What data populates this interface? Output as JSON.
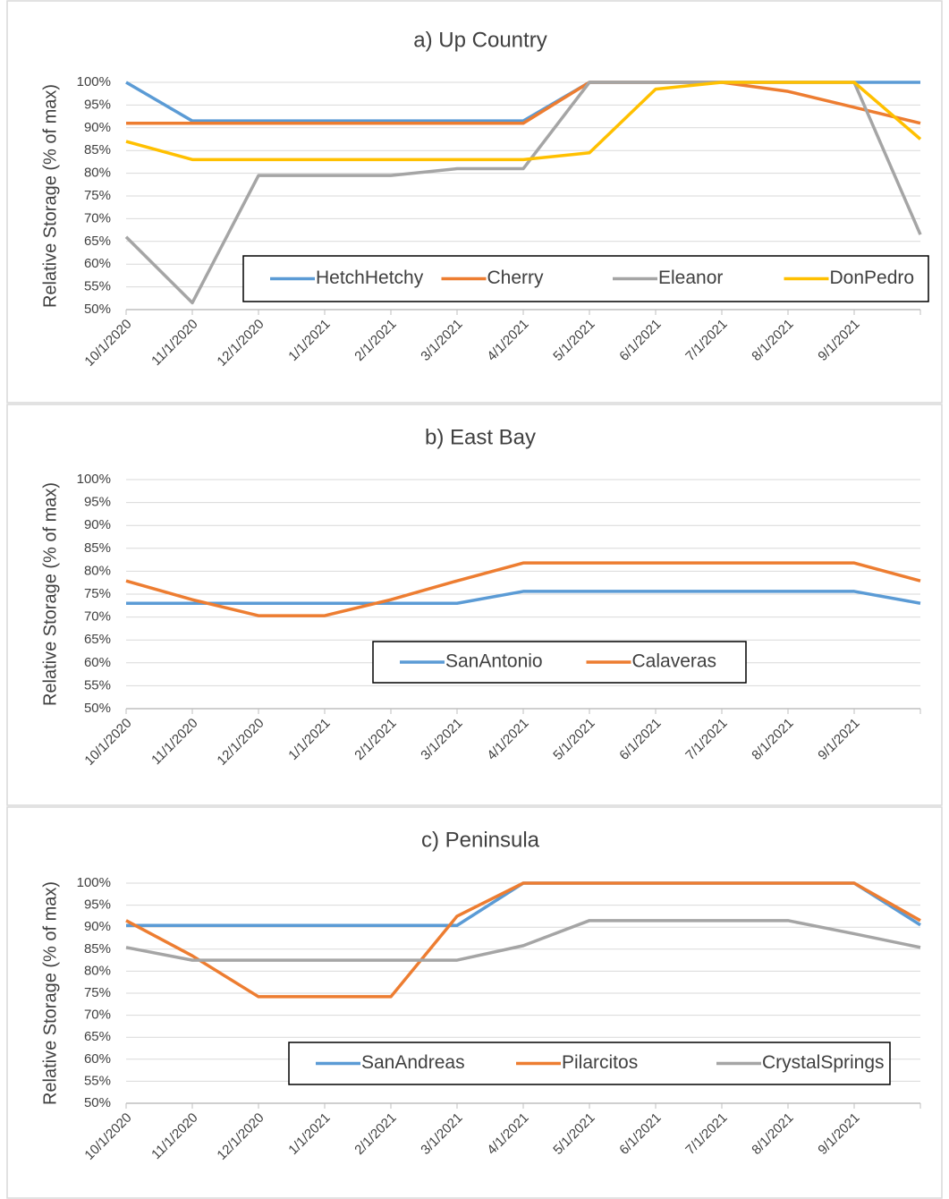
{
  "chart_data": [
    {
      "type": "line",
      "title": "a) Up Country",
      "y_label": "Relative Storage (% of max)",
      "categories": [
        "10/1/2020",
        "11/1/2020",
        "12/1/2020",
        "1/1/2021",
        "2/1/2021",
        "3/1/2021",
        "4/1/2021",
        "5/1/2021",
        "6/1/2021",
        "7/1/2021",
        "8/1/2021",
        "9/1/2021",
        null
      ],
      "series": [
        {
          "name": "HetchHetchy",
          "color": "#5b9bd5",
          "values": [
            100,
            91.5,
            91.5,
            91.5,
            91.5,
            91.5,
            91.5,
            100,
            100,
            100,
            100,
            100,
            100
          ]
        },
        {
          "name": "Cherry",
          "color": "#ed7d31",
          "values": [
            91,
            91,
            91,
            91,
            91,
            91,
            91,
            100,
            100,
            100,
            98,
            94.5,
            91
          ]
        },
        {
          "name": "Eleanor",
          "color": "#a5a5a5",
          "values": [
            66,
            51.5,
            79.5,
            79.5,
            79.5,
            81,
            81,
            100,
            100,
            100,
            100,
            100,
            66.5
          ]
        },
        {
          "name": "DonPedro",
          "color": "#ffc000",
          "values": [
            87,
            83,
            83,
            83,
            83,
            83,
            83,
            84.5,
            98.5,
            100,
            100,
            100,
            87.5
          ]
        }
      ],
      "ylim": [
        50,
        100
      ],
      "yticks": [
        {
          "value": 50,
          "label": "50%"
        },
        {
          "value": 55,
          "label": "55%"
        },
        {
          "value": 60,
          "label": "60%"
        },
        {
          "value": 65,
          "label": "65%"
        },
        {
          "value": 70,
          "label": "70%"
        },
        {
          "value": 75,
          "label": "75%"
        },
        {
          "value": 80,
          "label": "80%"
        },
        {
          "value": 85,
          "label": "85%"
        },
        {
          "value": 90,
          "label": "90%"
        },
        {
          "value": 95,
          "label": "95%"
        },
        {
          "value": 100,
          "label": "100%"
        }
      ],
      "grid": true
    },
    {
      "type": "line",
      "title": "b) East Bay",
      "y_label": "Relative Storage (% of max)",
      "categories": [
        "10/1/2020",
        "11/1/2020",
        "12/1/2020",
        "1/1/2021",
        "2/1/2021",
        "3/1/2021",
        "4/1/2021",
        "5/1/2021",
        "6/1/2021",
        "7/1/2021",
        "8/1/2021",
        "9/1/2021",
        null
      ],
      "series": [
        {
          "name": "SanAntonio",
          "color": "#5b9bd5",
          "values": [
            73,
            73,
            73,
            73,
            73,
            73,
            75.6,
            75.6,
            75.6,
            75.6,
            75.6,
            75.6,
            73
          ]
        },
        {
          "name": "Calaveras",
          "color": "#ed7d31",
          "values": [
            77.9,
            73.8,
            70.3,
            70.3,
            73.8,
            77.9,
            81.8,
            81.8,
            81.8,
            81.8,
            81.8,
            81.8,
            77.9
          ]
        }
      ],
      "ylim": [
        50,
        100
      ],
      "yticks": [
        {
          "value": 50,
          "label": "50%"
        },
        {
          "value": 55,
          "label": "55%"
        },
        {
          "value": 60,
          "label": "60%"
        },
        {
          "value": 65,
          "label": "65%"
        },
        {
          "value": 70,
          "label": "70%"
        },
        {
          "value": 75,
          "label": "75%"
        },
        {
          "value": 80,
          "label": "80%"
        },
        {
          "value": 85,
          "label": "85%"
        },
        {
          "value": 90,
          "label": "90%"
        },
        {
          "value": 95,
          "label": "95%"
        },
        {
          "value": 100,
          "label": "100%"
        }
      ],
      "grid": true
    },
    {
      "type": "line",
      "title": "c) Peninsula",
      "y_label": "Relative Storage (% of max)",
      "categories": [
        "10/1/2020",
        "11/1/2020",
        "12/1/2020",
        "1/1/2021",
        "2/1/2021",
        "3/1/2021",
        "4/1/2021",
        "5/1/2021",
        "6/1/2021",
        "7/1/2021",
        "8/1/2021",
        "9/1/2021",
        null
      ],
      "series": [
        {
          "name": "SanAndreas",
          "color": "#5b9bd5",
          "values": [
            90.4,
            90.4,
            90.4,
            90.4,
            90.4,
            90.4,
            100,
            100,
            100,
            100,
            100,
            100,
            90.5
          ]
        },
        {
          "name": "Pilarcitos",
          "color": "#ed7d31",
          "values": [
            91.5,
            83.5,
            74.2,
            74.2,
            74.2,
            92.5,
            100,
            100,
            100,
            100,
            100,
            100,
            91.5
          ]
        },
        {
          "name": "CrystalSprings",
          "color": "#a5a5a5",
          "values": [
            85.4,
            82.5,
            82.5,
            82.5,
            82.5,
            82.5,
            85.8,
            91.5,
            91.5,
            91.5,
            91.5,
            88.5,
            85.4
          ]
        }
      ],
      "ylim": [
        50,
        100
      ],
      "yticks": [
        {
          "value": 50,
          "label": "50%"
        },
        {
          "value": 55,
          "label": "55%"
        },
        {
          "value": 60,
          "label": "60%"
        },
        {
          "value": 65,
          "label": "65%"
        },
        {
          "value": 70,
          "label": "70%"
        },
        {
          "value": 75,
          "label": "75%"
        },
        {
          "value": 80,
          "label": "80%"
        },
        {
          "value": 85,
          "label": "85%"
        },
        {
          "value": 90,
          "label": "90%"
        },
        {
          "value": 95,
          "label": "95%"
        },
        {
          "value": 100,
          "label": "100%"
        }
      ],
      "grid": true
    }
  ]
}
